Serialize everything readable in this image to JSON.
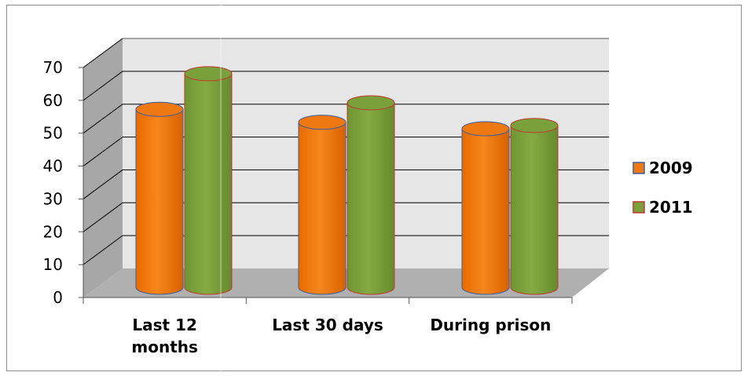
{
  "chart_data": {
    "type": "bar",
    "categories": [
      [
        "Last 12",
        "months"
      ],
      [
        "Last 30 days"
      ],
      [
        "During prison"
      ]
    ],
    "series": [
      {
        "name": "2009",
        "values": [
          55,
          51,
          49
        ],
        "color": "#f07810",
        "edge": "#3a5fa0"
      },
      {
        "name": "2011",
        "values": [
          66,
          57,
          50
        ],
        "color": "#79a03a",
        "edge": "#c0392b"
      }
    ],
    "ylim": [
      0,
      70
    ],
    "yticks": [
      0,
      10,
      20,
      30,
      40,
      50,
      60,
      70
    ],
    "grid": true,
    "legend_position": "right",
    "wall_color": "#e6e6e6",
    "floor_color": "#b0b0b0"
  }
}
